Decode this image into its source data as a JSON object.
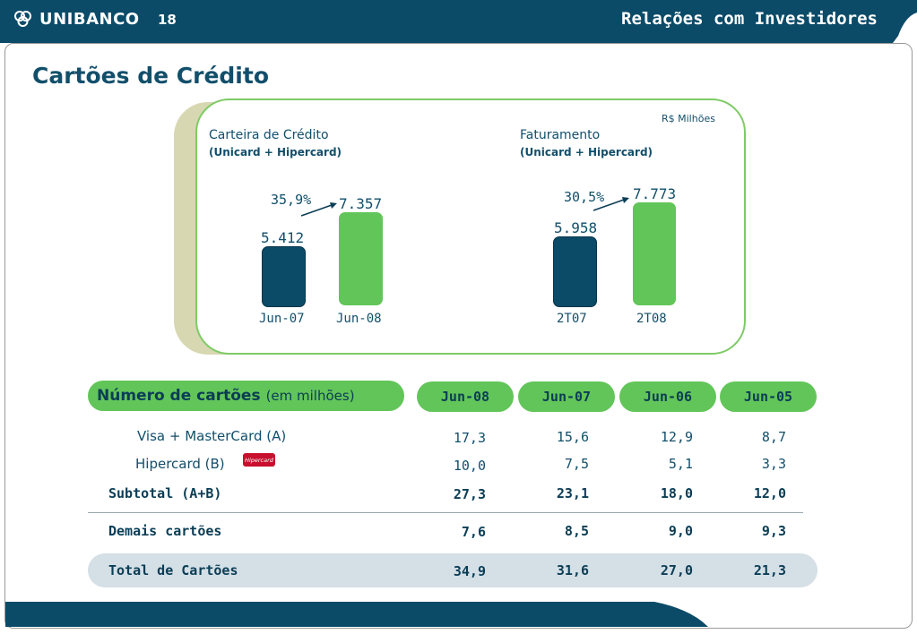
{
  "header": {
    "brand": "UNIBANCO",
    "page_number": "18",
    "section_title": "Relações com Investidores",
    "colors": {
      "header_blue": "#0b4b68",
      "accent_green": "#62c559"
    }
  },
  "page_title": "Cartões de Crédito",
  "charts_panel": {
    "unit": "R$ Milhões",
    "left_chart": {
      "title": "Carteira de Crédito",
      "subtitle": "(Unicard + Hipercard)",
      "growth": "35,9%",
      "bars": [
        {
          "label": "Jun-07",
          "value": "5.412"
        },
        {
          "label": "Jun-08",
          "value": "7.357"
        }
      ]
    },
    "right_chart": {
      "title": "Faturamento",
      "subtitle": "(Unicard + Hipercard)",
      "growth": "30,5%",
      "bars": [
        {
          "label": "2T07",
          "value": "5.958"
        },
        {
          "label": "2T08",
          "value": "7.773"
        }
      ]
    }
  },
  "chart_data": [
    {
      "type": "bar",
      "title": "Carteira de Crédito",
      "subtitle": "(Unicard + Hipercard)",
      "unit": "R$ Milhões",
      "categories": [
        "Jun-07",
        "Jun-08"
      ],
      "values": [
        5412,
        7357
      ],
      "annotation": "35,9%"
    },
    {
      "type": "bar",
      "title": "Faturamento",
      "subtitle": "(Unicard + Hipercard)",
      "unit": "R$ Milhões",
      "categories": [
        "2T07",
        "2T08"
      ],
      "values": [
        5958,
        7773
      ],
      "annotation": "30,5%"
    }
  ],
  "cards_table": {
    "title_bold": "Número de cartões",
    "title_light": "(em milhões)",
    "columns": [
      "Jun-08",
      "Jun-07",
      "Jun-06",
      "Jun-05"
    ],
    "hipercard_logo_text": "Hipercard",
    "rows": [
      {
        "label": "Visa + MasterCard (A)",
        "values": [
          "17,3",
          "15,6",
          "12,9",
          "8,7"
        ]
      },
      {
        "label": "Hipercard (B)",
        "values": [
          "10,0",
          "7,5",
          "5,1",
          "3,3"
        ]
      },
      {
        "label": "Subtotal (A+B)",
        "values": [
          "27,3",
          "23,1",
          "18,0",
          "12,0"
        ]
      },
      {
        "label": "Demais cartões",
        "values": [
          "7,6",
          "8,5",
          "9,0",
          "9,3"
        ]
      },
      {
        "label": "Total de Cartões",
        "values": [
          "34,9",
          "31,6",
          "27,0",
          "21,3"
        ]
      }
    ]
  }
}
